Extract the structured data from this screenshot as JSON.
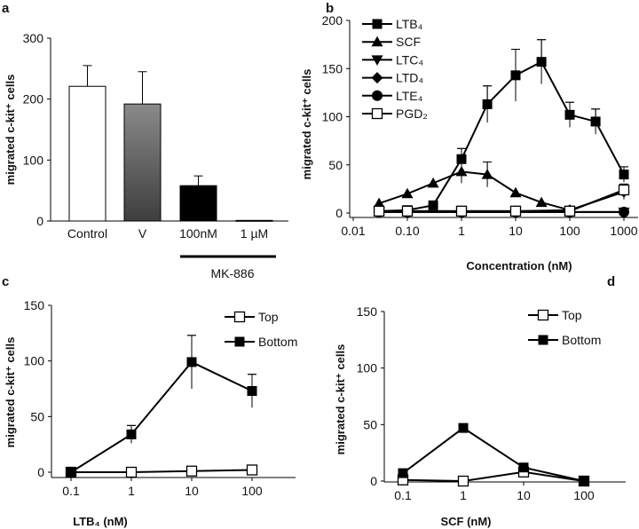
{
  "chart_data": [
    {
      "panel": "a",
      "type": "bar",
      "ylabel": "migrated c-kit⁺ cells",
      "ylim": [
        0,
        300
      ],
      "yticks": [
        "0",
        "100",
        "200",
        "300"
      ],
      "categories": [
        "Control",
        "V",
        "100nM",
        "1 µM"
      ],
      "values": [
        221,
        192,
        58,
        1
      ],
      "errors": [
        34,
        53,
        16,
        0
      ],
      "fills": [
        "#ffffff",
        "gradient-gray",
        "#000000",
        "#000000"
      ],
      "group_label": "MK-886"
    },
    {
      "panel": "b",
      "type": "line",
      "xscale": "log",
      "xlabel": "Concentration (nM)",
      "ylabel": "migrated c-kit⁺ cells",
      "ylim": [
        0,
        200
      ],
      "yticks": [
        "0",
        "50",
        "100",
        "150",
        "200"
      ],
      "xticks": [
        "0.01",
        "0.10",
        "1",
        "10",
        "100",
        "1000"
      ],
      "legend_position": "top-left",
      "series": [
        {
          "name": "LTB₄",
          "marker": "square-filled",
          "x": [
            0.03,
            0.1,
            0.3,
            1,
            3,
            10,
            30,
            100,
            300,
            1000
          ],
          "y": [
            2,
            3,
            8,
            56,
            113,
            143,
            157,
            102,
            95,
            40
          ],
          "err": [
            0,
            0,
            0,
            11,
            19,
            27,
            23,
            13,
            13,
            8
          ]
        },
        {
          "name": "SCF",
          "marker": "triangle-up",
          "x": [
            0.03,
            0.1,
            0.3,
            1,
            3,
            10,
            30,
            100
          ],
          "y": [
            10,
            20,
            31,
            43,
            40,
            21,
            11,
            3
          ],
          "err": [
            0,
            0,
            0,
            12,
            13,
            0,
            0,
            0
          ]
        },
        {
          "name": "LTC₄",
          "marker": "triangle-down",
          "x": [
            0.03,
            0.1,
            1,
            10,
            100,
            1000
          ],
          "y": [
            1,
            1,
            1,
            1,
            1,
            1
          ],
          "err": [
            0,
            0,
            0,
            0,
            0,
            0
          ]
        },
        {
          "name": "LTD₄",
          "marker": "diamond",
          "x": [
            0.03,
            0.1,
            1,
            10,
            100,
            1000
          ],
          "y": [
            2,
            2,
            2,
            2,
            3,
            22
          ],
          "err": [
            0,
            0,
            0,
            0,
            0,
            8
          ]
        },
        {
          "name": "LTE₄",
          "marker": "circle",
          "x": [
            0.03,
            0.1,
            1,
            10,
            100,
            1000
          ],
          "y": [
            1,
            1,
            1,
            1,
            1,
            1
          ],
          "err": [
            0,
            0,
            0,
            0,
            0,
            0
          ]
        },
        {
          "name": "PGD₂",
          "marker": "square-open",
          "x": [
            0.03,
            0.1,
            1,
            10,
            100,
            1000
          ],
          "y": [
            2,
            2,
            2,
            2,
            2,
            24
          ],
          "err": [
            0,
            0,
            0,
            0,
            0,
            6
          ]
        }
      ]
    },
    {
      "panel": "c",
      "type": "line",
      "xscale": "log",
      "xlabel": "LTB₄ (nM)",
      "ylabel": "migrated c-kit⁺ cells",
      "ylim": [
        0,
        150
      ],
      "yticks": [
        "0",
        "50",
        "100",
        "150"
      ],
      "xticks": [
        "0.1",
        "1",
        "10",
        "100"
      ],
      "legend_position": "top-right",
      "series": [
        {
          "name": "Top",
          "marker": "square-open",
          "x": [
            0.1,
            1,
            10,
            100
          ],
          "y": [
            0,
            0,
            1,
            2
          ],
          "err": [
            0,
            0,
            0,
            0
          ]
        },
        {
          "name": "Bottom",
          "marker": "square-filled",
          "x": [
            0.1,
            1,
            10,
            100
          ],
          "y": [
            0,
            34,
            99,
            73
          ],
          "err": [
            0,
            8,
            24,
            15
          ]
        }
      ]
    },
    {
      "panel": "d",
      "type": "line",
      "xscale": "log",
      "xlabel": "SCF (nM)",
      "ylabel": "migrated c-kit⁺ cells",
      "ylim": [
        0,
        150
      ],
      "yticks": [
        "0",
        "50",
        "100",
        "150"
      ],
      "xticks": [
        "0.1",
        "1",
        "10",
        "100"
      ],
      "legend_position": "top-right",
      "series": [
        {
          "name": "Top",
          "marker": "square-open",
          "x": [
            0.1,
            1,
            10,
            100
          ],
          "y": [
            1,
            0,
            8,
            0
          ],
          "err": [
            0,
            0,
            0,
            0
          ]
        },
        {
          "name": "Bottom",
          "marker": "square-filled",
          "x": [
            0.1,
            1,
            10,
            100
          ],
          "y": [
            7,
            47,
            12,
            0
          ],
          "err": [
            0,
            0,
            0,
            0
          ]
        }
      ]
    }
  ]
}
